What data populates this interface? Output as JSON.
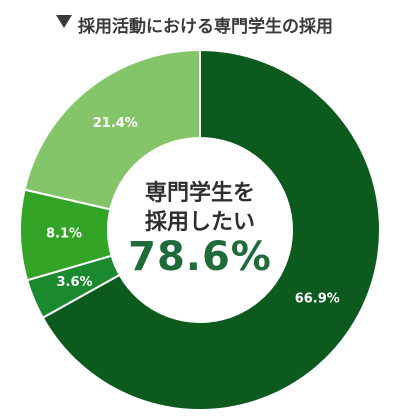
{
  "title": "採用活動における専門学生の採用",
  "center": {
    "line1": "専門学生を",
    "line2": "採用したい",
    "value": "78.6%"
  },
  "chart_data": {
    "type": "pie",
    "title": "採用活動における専門学生の採用",
    "slices": [
      {
        "value": 66.9,
        "label": "66.9%",
        "color": "#0d5a1f"
      },
      {
        "value": 3.6,
        "label": "3.6%",
        "color": "#1b8a2e"
      },
      {
        "value": 8.1,
        "label": "8.1%",
        "color": "#34a427"
      },
      {
        "value": 21.4,
        "label": "21.4%",
        "color": "#85c56a"
      }
    ]
  }
}
